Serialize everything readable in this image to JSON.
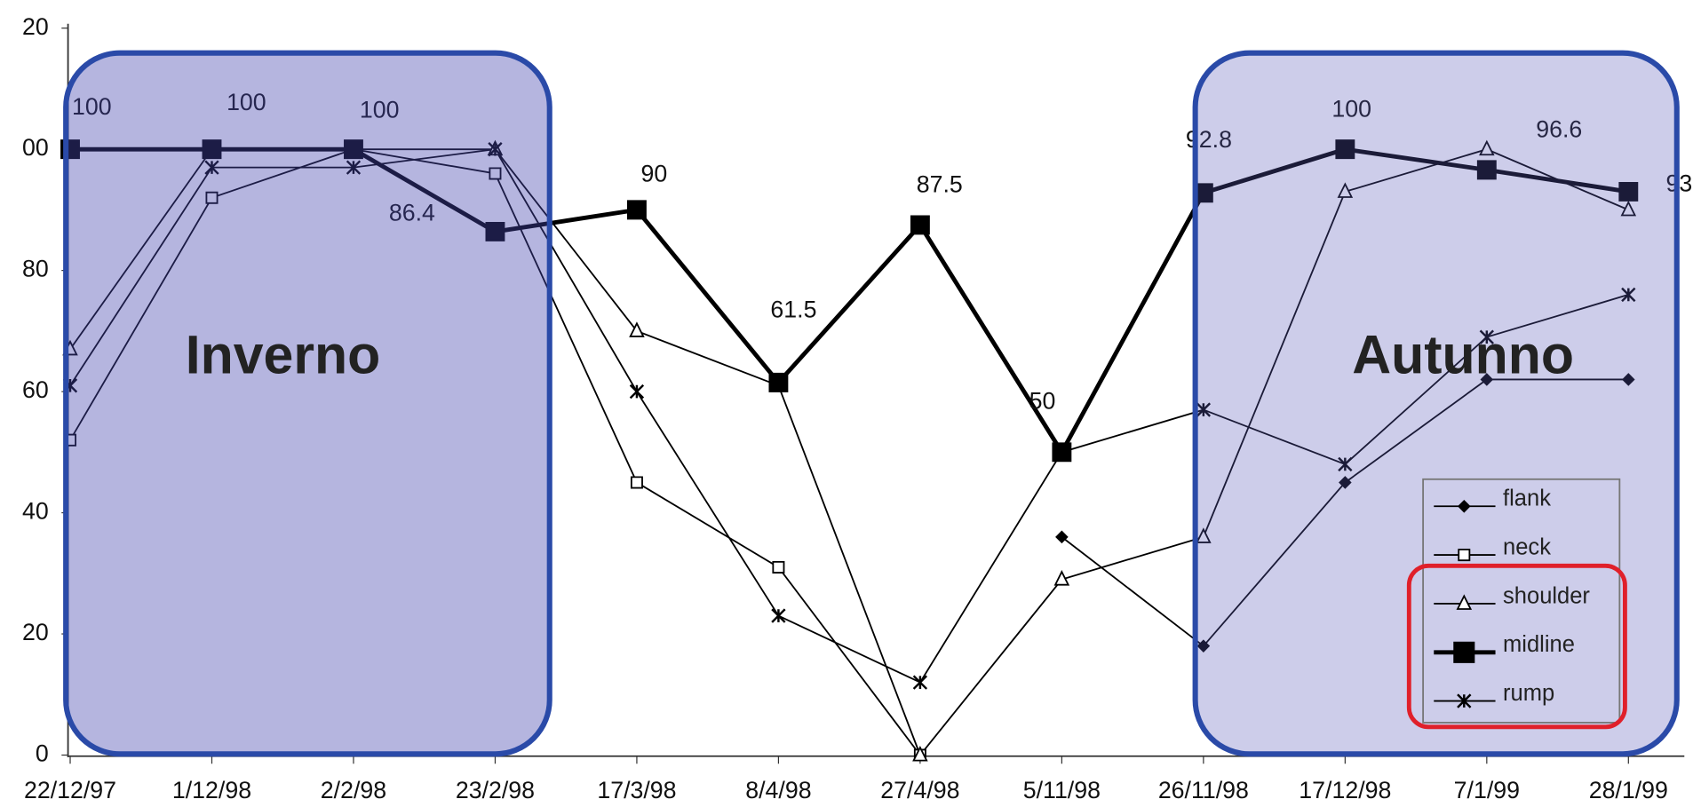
{
  "chart_data": {
    "type": "line",
    "categories": [
      "22/12/97",
      "1/12/98",
      "2/2/98",
      "23/2/98",
      "17/3/98",
      "8/4/98",
      "27/4/98",
      "5/11/98",
      "26/11/98",
      "17/12/98",
      "7/1/99",
      "28/1/99"
    ],
    "series": [
      {
        "name": "flank",
        "color": "#000000",
        "marker": "diamond",
        "line_width": 1.5,
        "values": [
          null,
          null,
          null,
          null,
          null,
          null,
          null,
          36,
          18,
          45,
          62,
          62
        ]
      },
      {
        "name": "neck",
        "color": "#000000",
        "marker": "open-square",
        "line_width": 1.5,
        "values": [
          52,
          92,
          100,
          96,
          45,
          31,
          0,
          null,
          null,
          null,
          null,
          null
        ]
      },
      {
        "name": "shoulder",
        "color": "#000000",
        "marker": "triangle",
        "line_width": 1.5,
        "values": [
          67,
          100,
          100,
          100,
          70,
          61,
          0,
          29,
          36,
          93,
          100,
          90
        ]
      },
      {
        "name": "midline",
        "color": "#000000",
        "marker": "filled-square",
        "line_width": 4,
        "values": [
          100,
          100,
          100,
          86.4,
          90,
          61.5,
          87.5,
          50,
          92.8,
          100,
          96.6,
          93
        ],
        "value_labels": [
          "100",
          "100",
          "100",
          "86.4",
          "90",
          "61.5",
          "87.5",
          "50",
          "92.8",
          "100",
          "96.6",
          "93."
        ]
      },
      {
        "name": "rump",
        "color": "#000000",
        "marker": "star",
        "line_width": 1.5,
        "values": [
          61,
          97,
          97,
          100,
          60,
          23,
          12,
          50,
          57,
          48,
          69,
          76
        ]
      }
    ],
    "ylim": [
      0,
      120
    ],
    "yticks": [
      0,
      20,
      40,
      60,
      80,
      {
        "value": 100,
        "label": "00"
      },
      {
        "value": 120,
        "label": "20"
      }
    ],
    "annotations": [
      "Inverno",
      "Autunno"
    ]
  }
}
